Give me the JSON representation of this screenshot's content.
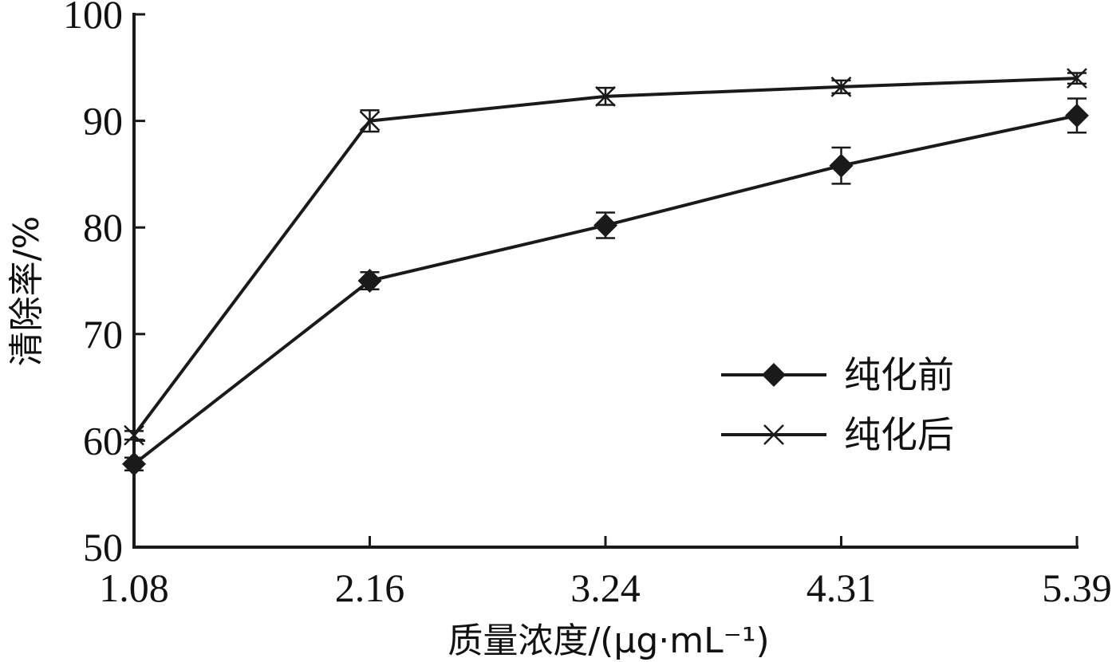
{
  "chart_data": {
    "type": "line",
    "categories": [
      "1.08",
      "2.16",
      "3.24",
      "4.31",
      "5.39"
    ],
    "xlabel": "质量浓度/(μg·mL⁻¹)",
    "ylabel": "清除率/%",
    "ylim": [
      50,
      100
    ],
    "yticks": [
      "50",
      "60",
      "70",
      "80",
      "90",
      "100"
    ],
    "grid": false,
    "legend_position": "center-right",
    "series": [
      {
        "name": "纯化前",
        "marker": "diamond",
        "values": [
          57.8,
          75.0,
          80.2,
          85.8,
          90.5
        ],
        "errors": [
          0.6,
          0.8,
          1.2,
          1.7,
          1.6
        ]
      },
      {
        "name": "纯化后",
        "marker": "x",
        "values": [
          60.5,
          90.0,
          92.3,
          93.2,
          94.0
        ],
        "errors": [
          0.4,
          1.0,
          0.8,
          0.6,
          0.5
        ]
      }
    ],
    "colors": {
      "line": "#1a1a1a",
      "text": "#111111"
    }
  }
}
